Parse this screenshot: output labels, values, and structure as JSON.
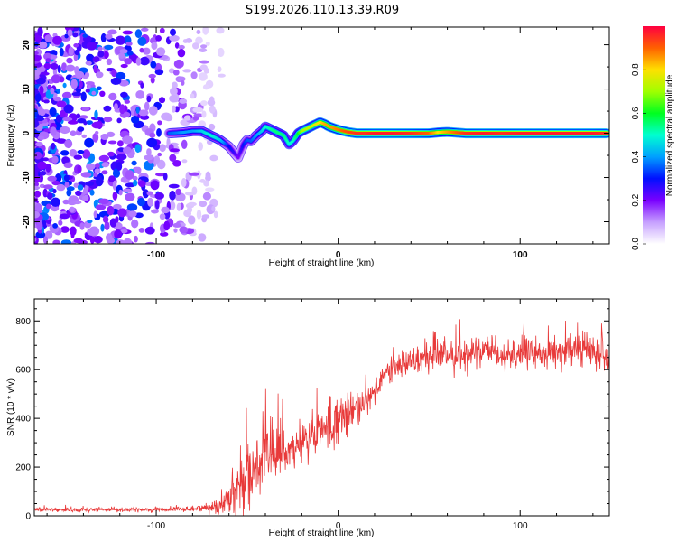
{
  "chart_data": [
    {
      "type": "heatmap",
      "title": "S199.2026.110.13.39.R09",
      "xlabel": "Height of straight line (km)",
      "ylabel": "Frequency (Hz)",
      "xlim": [
        -167,
        149
      ],
      "ylim": [
        -25,
        24
      ],
      "xticks": [
        -100,
        0,
        100
      ],
      "yticks": [
        -20,
        -10,
        0,
        10,
        20
      ],
      "noise_region_x": [
        -167,
        -72
      ],
      "ridge": {
        "x": [
          -93,
          -85,
          -80,
          -75,
          -70,
          -65,
          -60,
          -57,
          -55,
          -52,
          -50,
          -48,
          -45,
          -42,
          -40,
          -35,
          -30,
          -27,
          -25,
          -22,
          -20,
          -15,
          -10,
          -7,
          -5,
          0,
          5,
          10,
          15,
          20,
          30,
          40,
          50,
          55,
          60,
          70,
          80,
          90,
          100,
          110,
          120,
          130,
          140,
          148
        ],
        "freq": [
          0.0,
          0.2,
          0.5,
          0.5,
          -0.5,
          -1.5,
          -3.0,
          -4.5,
          -5.5,
          -2.5,
          -1.5,
          -1.8,
          -0.5,
          0.5,
          1.5,
          0.5,
          -0.5,
          -2.5,
          -1.8,
          0.0,
          0.5,
          1.5,
          2.5,
          2.0,
          1.5,
          0.8,
          0.3,
          0.0,
          0.0,
          0.0,
          0.0,
          0.0,
          0.0,
          0.2,
          0.3,
          0.0,
          0.0,
          0.0,
          0.0,
          0.0,
          0.0,
          0.0,
          0.0,
          0.0
        ],
        "amp": [
          0.35,
          0.4,
          0.4,
          0.45,
          0.5,
          0.45,
          0.3,
          0.25,
          0.2,
          0.3,
          0.35,
          0.35,
          0.4,
          0.45,
          0.5,
          0.55,
          0.55,
          0.5,
          0.5,
          0.6,
          0.7,
          0.75,
          0.8,
          0.85,
          0.85,
          0.88,
          0.92,
          0.95,
          0.95,
          0.97,
          0.97,
          0.95,
          0.9,
          0.8,
          0.85,
          0.95,
          0.97,
          0.95,
          0.97,
          0.97,
          0.97,
          0.97,
          0.97,
          0.95
        ]
      },
      "colorbar": {
        "label": "Normalized spectral amplitude",
        "range": [
          0,
          1
        ],
        "ticks": [
          "0.0",
          "0.2",
          "0.4",
          "0.6",
          "0.8"
        ]
      }
    },
    {
      "type": "line",
      "xlabel": "Height of straight line (km)",
      "ylabel": "SNR (10 * v/v)",
      "xlim": [
        -167,
        149
      ],
      "ylim": [
        0,
        890
      ],
      "xticks": [
        -100,
        0,
        100
      ],
      "yticks": [
        0,
        200,
        400,
        600,
        800
      ],
      "color": "#e83a3a",
      "trend": {
        "x": [
          -167,
          -100,
          -80,
          -70,
          -60,
          -55,
          -50,
          -45,
          -40,
          -30,
          -20,
          -10,
          0,
          10,
          20,
          30,
          40,
          50,
          60,
          70,
          80,
          90,
          100,
          110,
          120,
          130,
          140,
          149
        ],
        "mean": [
          25,
          25,
          28,
          35,
          60,
          110,
          170,
          210,
          230,
          260,
          300,
          340,
          380,
          440,
          520,
          600,
          640,
          650,
          660,
          665,
          660,
          660,
          665,
          670,
          670,
          680,
          680,
          660
        ],
        "spread": [
          10,
          10,
          12,
          25,
          80,
          130,
          160,
          150,
          140,
          120,
          110,
          100,
          100,
          90,
          80,
          75,
          70,
          75,
          80,
          80,
          75,
          70,
          70,
          70,
          70,
          70,
          70,
          70
        ]
      }
    }
  ]
}
